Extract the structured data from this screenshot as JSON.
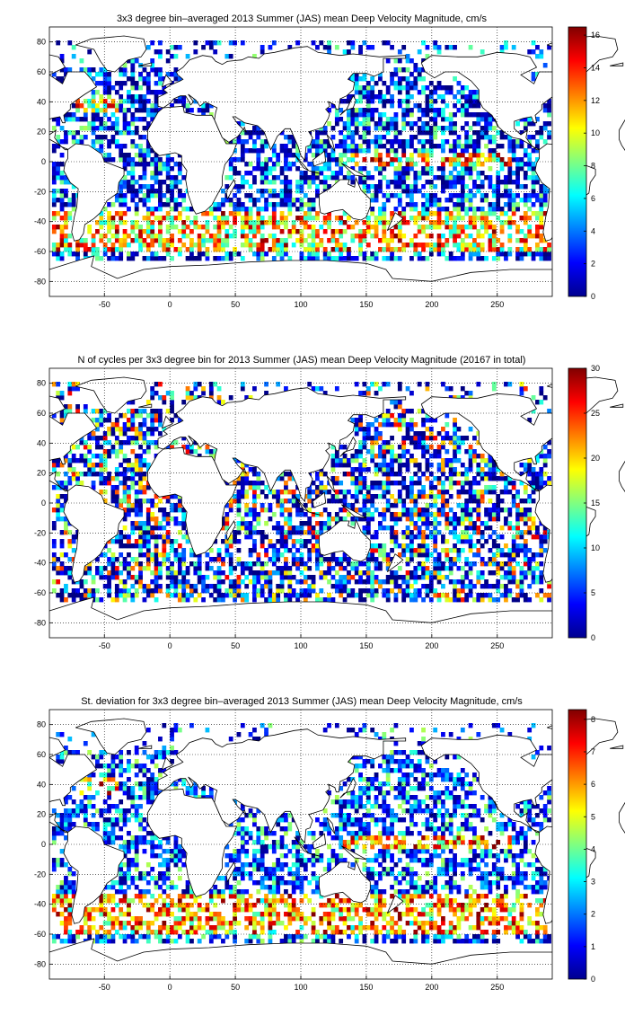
{
  "chart_data": [
    {
      "type": "heatmap",
      "title": "3x3 degree bin–averaged 2013 Summer (JAS) mean Deep Velocity Magnitude, cm/s",
      "xlim": [
        -92,
        292
      ],
      "ylim": [
        -90,
        90
      ],
      "xticks": [
        "-50",
        "0",
        "50",
        "100",
        "150",
        "200",
        "250"
      ],
      "yticks": [
        "80",
        "60",
        "40",
        "20",
        "0",
        "-20",
        "-40",
        "-60",
        "-80"
      ],
      "grid": true,
      "colorbar": {
        "min": 0,
        "max": 16.5,
        "ticks": [
          "16",
          "14",
          "12",
          "10",
          "8",
          "6",
          "4",
          "2",
          "0"
        ]
      },
      "bin_size_deg": 3
    },
    {
      "type": "heatmap",
      "title": "N of cycles per 3x3 degree bin for 2013 Summer (JAS) mean Deep Velocity Magnitude (20167 in total)",
      "xlim": [
        -92,
        292
      ],
      "ylim": [
        -90,
        90
      ],
      "xticks": [
        "-50",
        "0",
        "50",
        "100",
        "150",
        "200",
        "250"
      ],
      "yticks": [
        "80",
        "60",
        "40",
        "20",
        "0",
        "-20",
        "-40",
        "-60",
        "-80"
      ],
      "grid": true,
      "colorbar": {
        "min": 0,
        "max": 30,
        "ticks": [
          "30",
          "25",
          "20",
          "15",
          "10",
          "5",
          "0"
        ]
      },
      "bin_size_deg": 3
    },
    {
      "type": "heatmap",
      "title": "St. deviation for 3x3 degree bin–averaged 2013 Summer (JAS) mean Deep Velocity Magnitude, cm/s",
      "xlim": [
        -92,
        292
      ],
      "ylim": [
        -90,
        90
      ],
      "xticks": [
        "-50",
        "0",
        "50",
        "100",
        "150",
        "200",
        "250"
      ],
      "yticks": [
        "80",
        "60",
        "40",
        "20",
        "0",
        "-20",
        "-40",
        "-60",
        "-80"
      ],
      "grid": true,
      "colorbar": {
        "min": 0,
        "max": 8.3,
        "ticks": [
          "8",
          "7",
          "6",
          "5",
          "4",
          "3",
          "2",
          "1",
          "0"
        ]
      },
      "bin_size_deg": 3
    }
  ],
  "colormap": "jet"
}
